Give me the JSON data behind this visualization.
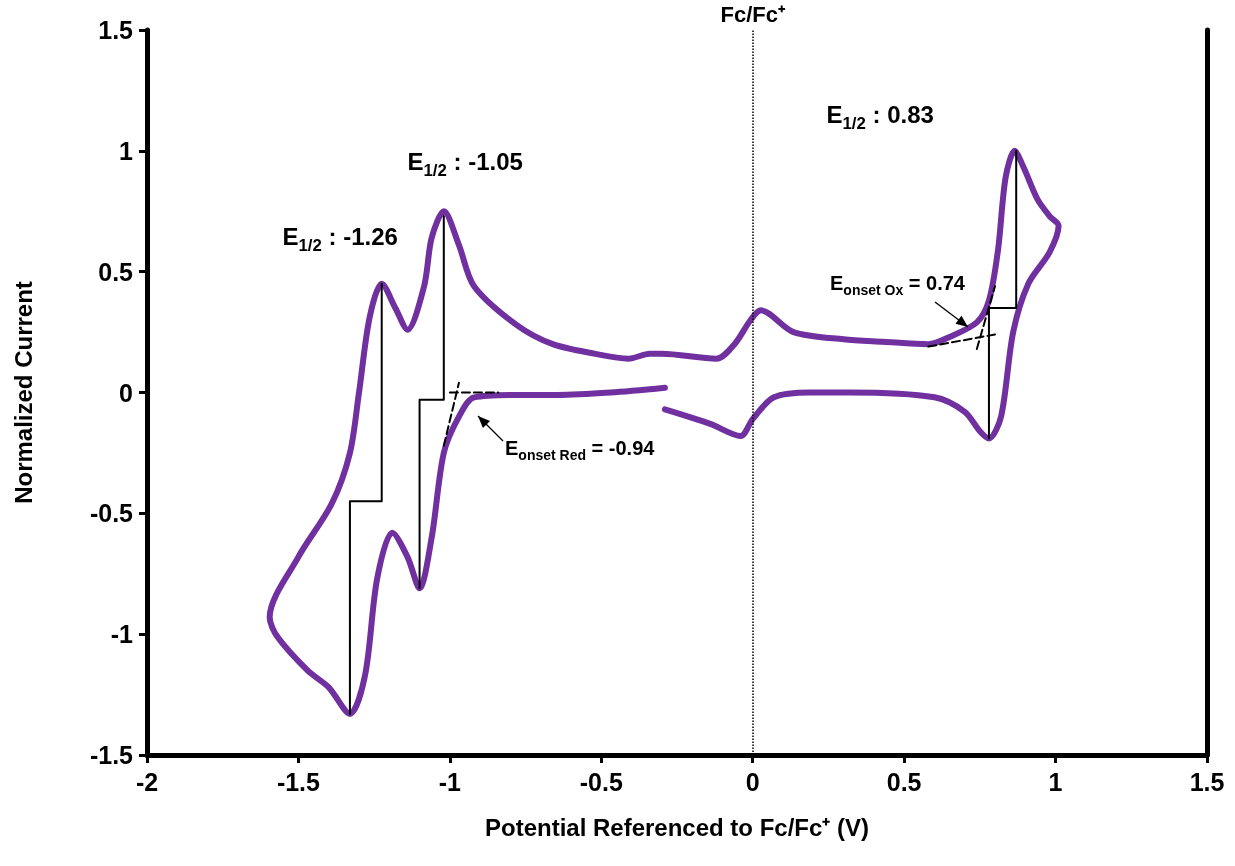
{
  "chart_data": {
    "type": "line",
    "xlabel": "Potential Referenced to Fc/Fc⁺ (V)",
    "ylabel": "Normalized Current",
    "xlim": [
      -2,
      1.5
    ],
    "xticks": [
      -2,
      -1.5,
      -1,
      -0.5,
      0,
      0.5,
      1,
      1.5
    ],
    "ylim": [
      -1.5,
      1.5
    ],
    "yticks": [
      -1.5,
      -1,
      -0.5,
      0,
      0.5,
      1,
      1.5
    ],
    "grid": false,
    "marker": "none",
    "series": [
      {
        "color": "#7030a0",
        "line_style": "solid",
        "x": [
          -0.29,
          -0.14,
          -0.04,
          0.0,
          0.07,
          0.19,
          0.32,
          0.6,
          0.7,
          0.75,
          0.78,
          0.82,
          0.86,
          0.91,
          0.98,
          1.01,
          0.98,
          0.94,
          0.895,
          0.865,
          0.835,
          0.81,
          0.78,
          0.74,
          0.65,
          0.58,
          0.43,
          0.3,
          0.135,
          0.027,
          -0.007,
          -0.06,
          -0.12,
          -0.3,
          -0.34,
          -0.41,
          -0.52,
          -0.66,
          -0.78,
          -0.92,
          -0.97,
          -1.02,
          -1.06,
          -1.085,
          -1.14,
          -1.18,
          -1.225,
          -1.265,
          -1.3,
          -1.33,
          -1.39,
          -1.5,
          -1.595,
          -1.57,
          -1.47,
          -1.4,
          -1.33,
          -1.28,
          -1.24,
          -1.19,
          -1.14,
          -1.1,
          -1.06,
          -1.02,
          -0.97,
          -0.92,
          -0.78,
          -0.645,
          -0.47,
          -0.29
        ],
        "values": [
          -0.07,
          -0.13,
          -0.18,
          -0.11,
          -0.02,
          0.0,
          0.0,
          -0.02,
          -0.08,
          -0.16,
          -0.19,
          -0.1,
          0.25,
          0.45,
          0.58,
          0.69,
          0.73,
          0.8,
          0.93,
          1.0,
          0.89,
          0.59,
          0.38,
          0.29,
          0.23,
          0.2,
          0.21,
          0.22,
          0.25,
          0.34,
          0.3,
          0.2,
          0.14,
          0.16,
          0.16,
          0.14,
          0.16,
          0.2,
          0.28,
          0.44,
          0.61,
          0.75,
          0.64,
          0.44,
          0.26,
          0.35,
          0.45,
          0.31,
          0.0,
          -0.25,
          -0.46,
          -0.68,
          -0.93,
          -1.01,
          -1.15,
          -1.22,
          -1.33,
          -1.17,
          -0.77,
          -0.58,
          -0.68,
          -0.81,
          -0.6,
          -0.25,
          -0.1,
          -0.02,
          -0.01,
          -0.01,
          0.0,
          0.02
        ]
      },
      {
        "color": "#000000",
        "line_style": "solid",
        "x": [
          -1.33,
          -1.33,
          -1.225,
          -1.225
        ],
        "values": [
          -1.33,
          -0.45,
          -0.45,
          0.45
        ]
      },
      {
        "color": "#000000",
        "line_style": "solid",
        "x": [
          -1.1,
          -1.1,
          -1.02,
          -1.02
        ],
        "values": [
          -0.81,
          -0.03,
          -0.03,
          0.73
        ]
      },
      {
        "color": "#000000",
        "line_style": "solid",
        "x": [
          0.78,
          0.78,
          0.87,
          0.87
        ],
        "values": [
          -0.19,
          0.35,
          0.35,
          1.0
        ]
      },
      {
        "color": "#000000",
        "line_style": "dashed",
        "x": [
          -1.0,
          -0.84
        ],
        "values": [
          0.0,
          0.0
        ]
      },
      {
        "color": "#000000",
        "line_style": "dashed",
        "x": [
          -1.02,
          -0.97
        ],
        "values": [
          -0.22,
          0.04
        ]
      },
      {
        "color": "#000000",
        "line_style": "dashed",
        "x": [
          0.58,
          0.8
        ],
        "values": [
          0.19,
          0.24
        ]
      },
      {
        "color": "#000000",
        "line_style": "dashed",
        "x": [
          0.74,
          0.8
        ],
        "values": [
          0.18,
          0.44
        ]
      }
    ],
    "ref_lines": [
      {
        "axis": "x",
        "value": 0,
        "label": "Fc/Fc⁺",
        "color": "#000000",
        "line_style": "dotted"
      }
    ],
    "annotations": [
      "E$_{1/2}$ : -1.26",
      "E$_{1/2}$ : -1.05",
      "E$_{1/2}$ : 0.83",
      "E$_{onset Red}$ = -0.94",
      "E$_{onset Ox}$ = 0.74"
    ]
  }
}
